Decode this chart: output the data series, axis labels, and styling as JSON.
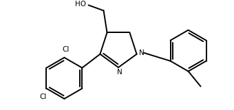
{
  "bg_color": "#ffffff",
  "line_color": "#000000",
  "lw": 1.4,
  "fs": 7.5,
  "figsize": [
    3.4,
    1.6
  ],
  "dpi": 100,
  "xlim": [
    0,
    340
  ],
  "ylim": [
    0,
    160
  ]
}
